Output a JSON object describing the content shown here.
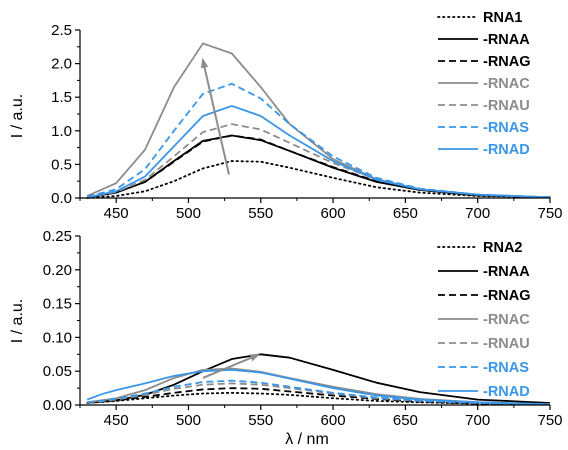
{
  "colors": {
    "black": "#000000",
    "gray": "#8c8c8c",
    "blue": "#3a96e8"
  },
  "chart_data": [
    {
      "type": "line",
      "title": "",
      "xlabel": "",
      "ylabel": "I / a.u.",
      "xlim": [
        425,
        750
      ],
      "ylim": [
        0,
        2.5
      ],
      "xticks": [
        "450",
        "500",
        "550",
        "600",
        "650",
        "700",
        "750"
      ],
      "yticks": [
        "0.0",
        "0.5",
        "1.0",
        "1.5",
        "2.0",
        "2.5"
      ],
      "legend_position": "top-right",
      "annotation": "gray arrow from x=528,y=0.35 to x=510,y=2.05 indicating increasing intensity",
      "series": [
        {
          "name": "RNA1",
          "style": "dotted",
          "color": "black",
          "x": [
            430,
            450,
            470,
            490,
            510,
            530,
            550,
            570,
            600,
            630,
            660,
            700,
            750
          ],
          "y": [
            0.0,
            0.03,
            0.1,
            0.25,
            0.44,
            0.55,
            0.54,
            0.45,
            0.3,
            0.16,
            0.08,
            0.03,
            0.01
          ]
        },
        {
          "name": "-RNAA",
          "style": "solid",
          "color": "black",
          "x": [
            430,
            450,
            470,
            490,
            510,
            530,
            550,
            570,
            600,
            630,
            660,
            700,
            750
          ],
          "y": [
            0.01,
            0.08,
            0.24,
            0.55,
            0.85,
            0.93,
            0.86,
            0.7,
            0.45,
            0.24,
            0.12,
            0.04,
            0.01
          ]
        },
        {
          "name": "-RNAG",
          "style": "dashed",
          "color": "black",
          "x": [
            430,
            450,
            470,
            490,
            510,
            530,
            550,
            570,
            600,
            630,
            660,
            700,
            750
          ],
          "y": [
            0.01,
            0.08,
            0.24,
            0.54,
            0.84,
            0.93,
            0.87,
            0.7,
            0.46,
            0.25,
            0.12,
            0.04,
            0.01
          ]
        },
        {
          "name": "-RNAC",
          "style": "solid",
          "color": "gray",
          "x": [
            430,
            450,
            470,
            490,
            510,
            530,
            550,
            570,
            600,
            630,
            660,
            700,
            750
          ],
          "y": [
            0.03,
            0.22,
            0.72,
            1.65,
            2.3,
            2.15,
            1.65,
            1.1,
            0.58,
            0.28,
            0.13,
            0.05,
            0.01
          ]
        },
        {
          "name": "-RNAU",
          "style": "dashed",
          "color": "gray",
          "x": [
            430,
            450,
            470,
            490,
            510,
            530,
            550,
            570,
            600,
            630,
            660,
            700,
            750
          ],
          "y": [
            0.01,
            0.09,
            0.27,
            0.62,
            0.98,
            1.1,
            1.02,
            0.82,
            0.52,
            0.28,
            0.13,
            0.05,
            0.01
          ]
        },
        {
          "name": "-RNAS",
          "style": "dashed",
          "color": "blue",
          "x": [
            430,
            450,
            470,
            490,
            510,
            530,
            550,
            570,
            600,
            630,
            660,
            700,
            750
          ],
          "y": [
            0.02,
            0.13,
            0.43,
            1.0,
            1.55,
            1.7,
            1.48,
            1.1,
            0.62,
            0.3,
            0.14,
            0.05,
            0.01
          ]
        },
        {
          "name": "-RNAD",
          "style": "solid",
          "color": "blue",
          "x": [
            430,
            450,
            470,
            490,
            510,
            530,
            550,
            570,
            600,
            630,
            660,
            700,
            750
          ],
          "y": [
            0.01,
            0.1,
            0.32,
            0.77,
            1.22,
            1.37,
            1.22,
            0.93,
            0.55,
            0.27,
            0.13,
            0.05,
            0.01
          ]
        }
      ]
    },
    {
      "type": "line",
      "title": "",
      "xlabel": "λ / nm",
      "ylabel": "I / a.u.",
      "xlim": [
        425,
        750
      ],
      "ylim": [
        0,
        0.25
      ],
      "xticks": [
        "450",
        "500",
        "550",
        "600",
        "650",
        "700",
        "750"
      ],
      "yticks": [
        "0.00",
        "0.05",
        "0.10",
        "0.15",
        "0.20",
        "0.25"
      ],
      "legend_position": "top-right",
      "annotation": "gray arrow from x=510,y=0.04 to x=548,y=0.074 indicating red shift",
      "series": [
        {
          "name": "RNA2",
          "style": "dotted",
          "color": "black",
          "x": [
            430,
            450,
            470,
            490,
            510,
            530,
            550,
            570,
            600,
            630,
            660,
            700,
            750
          ],
          "y": [
            0.003,
            0.006,
            0.01,
            0.014,
            0.017,
            0.018,
            0.017,
            0.015,
            0.01,
            0.006,
            0.004,
            0.002,
            0.001
          ]
        },
        {
          "name": "-RNAA",
          "style": "solid",
          "color": "black",
          "x": [
            430,
            450,
            470,
            490,
            510,
            530,
            550,
            570,
            600,
            630,
            660,
            700,
            750
          ],
          "y": [
            0.003,
            0.007,
            0.015,
            0.03,
            0.05,
            0.068,
            0.075,
            0.07,
            0.052,
            0.033,
            0.019,
            0.008,
            0.003
          ]
        },
        {
          "name": "-RNAG",
          "style": "dashed",
          "color": "black",
          "x": [
            430,
            450,
            470,
            490,
            510,
            530,
            550,
            570,
            600,
            630,
            660,
            700,
            750
          ],
          "y": [
            0.003,
            0.007,
            0.012,
            0.018,
            0.023,
            0.025,
            0.024,
            0.02,
            0.014,
            0.009,
            0.005,
            0.002,
            0.001
          ]
        },
        {
          "name": "-RNAC",
          "style": "solid",
          "color": "gray",
          "x": [
            430,
            450,
            470,
            490,
            510,
            530,
            550,
            570,
            600,
            630,
            660,
            700,
            750
          ],
          "y": [
            0.004,
            0.01,
            0.022,
            0.04,
            0.052,
            0.054,
            0.049,
            0.04,
            0.027,
            0.016,
            0.009,
            0.004,
            0.001
          ]
        },
        {
          "name": "-RNAU",
          "style": "dashed",
          "color": "gray",
          "x": [
            430,
            450,
            470,
            490,
            510,
            530,
            550,
            570,
            600,
            630,
            660,
            700,
            750
          ],
          "y": [
            0.003,
            0.008,
            0.015,
            0.024,
            0.03,
            0.032,
            0.03,
            0.025,
            0.017,
            0.01,
            0.006,
            0.003,
            0.001
          ]
        },
        {
          "name": "-RNAS",
          "style": "dashed",
          "color": "blue",
          "x": [
            430,
            450,
            470,
            490,
            510,
            530,
            550,
            570,
            600,
            630,
            660,
            700,
            750
          ],
          "y": [
            0.004,
            0.009,
            0.017,
            0.027,
            0.034,
            0.036,
            0.033,
            0.027,
            0.018,
            0.011,
            0.006,
            0.003,
            0.001
          ]
        },
        {
          "name": "-RNAD",
          "style": "solid",
          "color": "blue",
          "x": [
            430,
            440,
            450,
            470,
            490,
            510,
            530,
            550,
            570,
            600,
            630,
            660,
            700,
            750
          ],
          "y": [
            0.008,
            0.016,
            0.022,
            0.032,
            0.043,
            0.05,
            0.052,
            0.048,
            0.039,
            0.025,
            0.014,
            0.008,
            0.004,
            0.001
          ]
        }
      ]
    }
  ]
}
